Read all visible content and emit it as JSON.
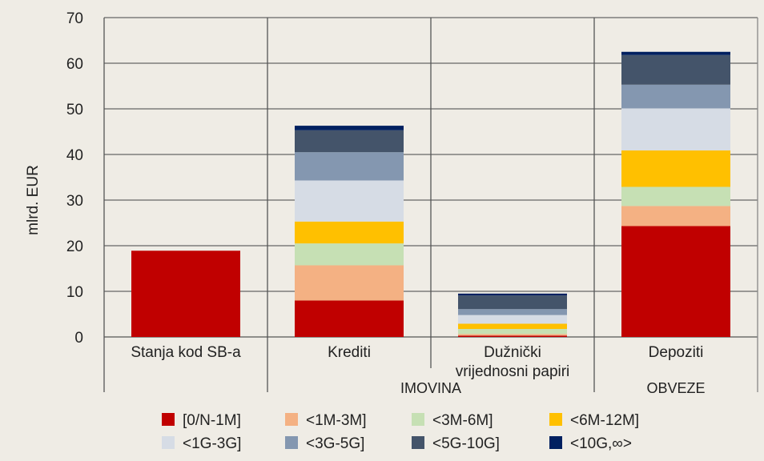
{
  "chart_data": {
    "type": "bar",
    "stacked": true,
    "title": "",
    "xlabel": "",
    "ylabel": "mlrd. EUR",
    "ylim": [
      0,
      70
    ],
    "yticks": [
      0,
      10,
      20,
      30,
      40,
      50,
      60,
      70
    ],
    "grid": true,
    "categories": [
      "Stanja kod SB-a",
      "Krediti",
      "Dužnički vrijednosni papiri",
      "Depoziti"
    ],
    "category_lines": [
      [
        "Stanja kod SB-a"
      ],
      [
        "Krediti"
      ],
      [
        "Dužnički",
        "vrijednosni papiri"
      ],
      [
        "Depoziti"
      ]
    ],
    "groups": [
      {
        "label": "IMOVINA",
        "categories": [
          "Krediti",
          "Dužnički vrijednosni papiri"
        ]
      },
      {
        "label": "OBVEZE",
        "categories": [
          "Depoziti"
        ]
      }
    ],
    "legend_position": "bottom",
    "series": [
      {
        "name": "[0/N-1M]",
        "color": "#c00000",
        "values": [
          18.9,
          8.0,
          0.3,
          24.3
        ]
      },
      {
        "name": "<1M-3M]",
        "color": "#f4b183",
        "values": [
          0,
          7.7,
          0.35,
          4.4
        ]
      },
      {
        "name": "<3M-6M]",
        "color": "#c6e0b4",
        "values": [
          0,
          4.8,
          1.1,
          4.2
        ]
      },
      {
        "name": "<6M-12M]",
        "color": "#ffc000",
        "values": [
          0,
          4.8,
          1.15,
          8.0
        ]
      },
      {
        "name": "<1G-3G]",
        "color": "#d6dce5",
        "values": [
          0,
          9.0,
          1.9,
          9.2
        ]
      },
      {
        "name": "<3G-5G]",
        "color": "#8497b0",
        "values": [
          0,
          6.2,
          1.3,
          5.2
        ]
      },
      {
        "name": "<5G-10G]",
        "color": "#44546a",
        "values": [
          0,
          4.8,
          3.0,
          6.5
        ]
      },
      {
        "name": "<10G,∞>",
        "color": "#002060",
        "values": [
          0,
          1.0,
          0.4,
          0.7
        ]
      }
    ]
  }
}
